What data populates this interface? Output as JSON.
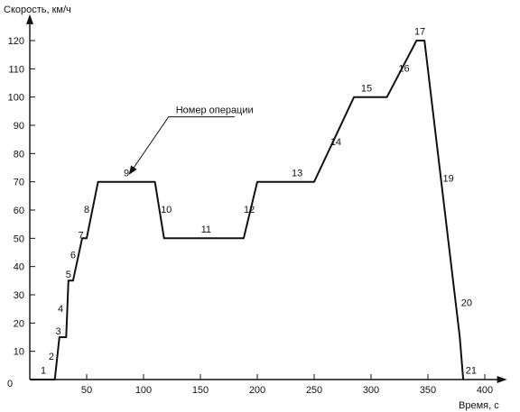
{
  "chart_data": {
    "type": "line",
    "title": "",
    "xlabel": "Время, с",
    "ylabel": "Скорость, км/ч",
    "xlim": [
      0,
      410
    ],
    "ylim": [
      0,
      128
    ],
    "grid": false,
    "x_ticks": [
      50,
      100,
      150,
      200,
      250,
      300,
      350,
      400
    ],
    "y_ticks": [
      10,
      20,
      30,
      40,
      50,
      60,
      70,
      80,
      90,
      100,
      110,
      120
    ],
    "origin_label": "0",
    "series": [
      {
        "x": [
          0,
          22,
          26,
          32,
          34,
          38,
          46,
          50,
          60,
          110,
          118,
          188,
          200,
          250,
          285,
          314,
          340,
          347,
          378,
          381
        ],
        "y": [
          0,
          0,
          15,
          15,
          35,
          35,
          50,
          50,
          70,
          70,
          50,
          50,
          70,
          70,
          100,
          100,
          120,
          120,
          15,
          0
        ]
      }
    ],
    "operation_labels": [
      {
        "text": "1",
        "x": 12,
        "y": 2
      },
      {
        "text": "2",
        "x": 19,
        "y": 7
      },
      {
        "text": "3",
        "x": 25,
        "y": 16
      },
      {
        "text": "4",
        "x": 27,
        "y": 24
      },
      {
        "text": "5",
        "x": 34,
        "y": 36
      },
      {
        "text": "6",
        "x": 38,
        "y": 43
      },
      {
        "text": "7",
        "x": 45,
        "y": 50
      },
      {
        "text": "8",
        "x": 50,
        "y": 59
      },
      {
        "text": "9",
        "x": 85,
        "y": 72
      },
      {
        "text": "10",
        "x": 120,
        "y": 59
      },
      {
        "text": "11",
        "x": 155,
        "y": 52
      },
      {
        "text": "12",
        "x": 193,
        "y": 59
      },
      {
        "text": "13",
        "x": 235,
        "y": 72
      },
      {
        "text": "14",
        "x": 269,
        "y": 83
      },
      {
        "text": "15",
        "x": 296,
        "y": 102
      },
      {
        "text": "16",
        "x": 329,
        "y": 109
      },
      {
        "text": "17",
        "x": 343,
        "y": 122
      },
      {
        "text": "19",
        "x": 368,
        "y": 70
      },
      {
        "text": "20",
        "x": 384,
        "y": 26
      },
      {
        "text": "21",
        "x": 388,
        "y": 2
      }
    ],
    "annotation": {
      "text": "Номер операции",
      "line_start": {
        "x": 180,
        "y": 93
      },
      "line_mid": {
        "x": 122,
        "y": 93
      },
      "arrow_tip": {
        "x": 88,
        "y": 73
      }
    }
  }
}
